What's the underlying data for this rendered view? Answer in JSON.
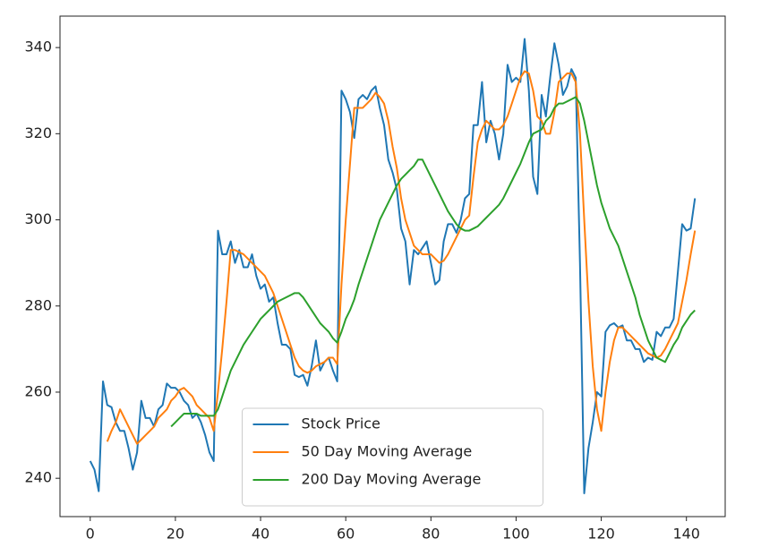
{
  "chart_data": {
    "type": "line",
    "x": [
      0,
      1,
      2,
      3,
      4,
      5,
      6,
      7,
      8,
      9,
      10,
      11,
      12,
      13,
      14,
      15,
      16,
      17,
      18,
      19,
      20,
      21,
      22,
      23,
      24,
      25,
      26,
      27,
      28,
      29,
      30,
      31,
      32,
      33,
      34,
      35,
      36,
      37,
      38,
      39,
      40,
      41,
      42,
      43,
      44,
      45,
      46,
      47,
      48,
      49,
      50,
      51,
      52,
      53,
      54,
      55,
      56,
      57,
      58,
      59,
      60,
      61,
      62,
      63,
      64,
      65,
      66,
      67,
      68,
      69,
      70,
      71,
      72,
      73,
      74,
      75,
      76,
      77,
      78,
      79,
      80,
      81,
      82,
      83,
      84,
      85,
      86,
      87,
      88,
      89,
      90,
      91,
      92,
      93,
      94,
      95,
      96,
      97,
      98,
      99,
      100,
      101,
      102,
      103,
      104,
      105,
      106,
      107,
      108,
      109,
      110,
      111,
      112,
      113,
      114,
      115,
      116,
      117,
      118,
      119,
      120,
      121,
      122,
      123,
      124,
      125,
      126,
      127,
      128,
      129,
      130,
      131,
      132,
      133,
      134,
      135,
      136,
      137,
      138,
      139,
      140,
      141,
      142
    ],
    "series": [
      {
        "name": "Stock Price",
        "color": "#1f77b4",
        "values": [
          244,
          242,
          237,
          262.5,
          257,
          256.5,
          253,
          251,
          251,
          247,
          242,
          246,
          258,
          254,
          254,
          252,
          256,
          257,
          262,
          261,
          261,
          260,
          258,
          257,
          254,
          255,
          253,
          250,
          246,
          244,
          297.5,
          292,
          292,
          295,
          290,
          293,
          289,
          289,
          292,
          287,
          284,
          285,
          281,
          282,
          276,
          271,
          271,
          270,
          264,
          263.5,
          264,
          261.5,
          266,
          272,
          265,
          267,
          268,
          265,
          262.5,
          330,
          328,
          325,
          319,
          328,
          329,
          328,
          330,
          331,
          326,
          322,
          314,
          311,
          307,
          298,
          295,
          285,
          293,
          292,
          293.5,
          295,
          290,
          285,
          286,
          295,
          299,
          299,
          297,
          300,
          305,
          306,
          322,
          322,
          332,
          318,
          323,
          320,
          314,
          320,
          336,
          332,
          333,
          332,
          342,
          330,
          310,
          306,
          329,
          324,
          333,
          341,
          336,
          329,
          331,
          335,
          333,
          290,
          236.5,
          247,
          253,
          260,
          259,
          274,
          275.5,
          276,
          275,
          275.5,
          272,
          272,
          270,
          270,
          267,
          268,
          267.5,
          274,
          273,
          275,
          275,
          277,
          288,
          299,
          297.5,
          298,
          305
        ]
      },
      {
        "name": "50 Day Moving Average",
        "color": "#ff7f0e",
        "values": [
          null,
          null,
          null,
          null,
          248.5,
          251,
          253,
          256,
          254,
          252,
          250,
          248,
          249,
          250,
          251,
          252,
          254,
          255,
          256,
          258,
          259,
          260.5,
          261,
          260,
          259,
          257,
          256,
          255,
          254,
          251,
          260,
          270,
          281,
          293,
          293,
          292.5,
          292,
          291,
          290,
          289,
          288,
          287,
          285,
          283,
          280,
          277,
          274,
          271,
          268,
          266,
          265,
          264.5,
          265,
          266,
          266.5,
          267,
          268,
          268,
          266.5,
          285,
          300,
          313,
          326,
          326,
          326,
          327,
          328,
          329.5,
          328.5,
          327,
          323,
          317,
          312,
          305,
          300,
          297,
          294,
          293,
          292,
          292,
          292,
          291,
          290,
          290.5,
          292,
          294,
          296,
          298,
          300,
          301,
          310,
          318,
          321,
          323,
          322,
          321,
          321,
          322,
          324,
          327,
          330,
          333,
          334.5,
          334,
          330,
          324,
          323,
          320,
          320,
          325,
          332,
          333,
          334,
          334,
          332,
          320,
          300,
          281,
          266,
          256,
          251,
          260,
          267,
          272,
          275,
          275,
          274,
          273,
          272,
          271,
          270,
          269,
          268.5,
          268,
          268.5,
          270,
          272,
          274,
          276,
          281,
          286,
          292,
          297.5
        ]
      },
      {
        "name": "200 Day Moving Average",
        "color": "#2ca02c",
        "values": [
          null,
          null,
          null,
          null,
          null,
          null,
          null,
          null,
          null,
          null,
          null,
          null,
          null,
          null,
          null,
          null,
          null,
          null,
          null,
          252,
          253,
          254,
          255,
          255,
          255,
          255,
          254.5,
          254.5,
          254.5,
          254.5,
          256,
          259,
          262,
          265,
          267,
          269,
          271,
          272.5,
          274,
          275.5,
          277,
          278,
          279,
          280,
          281,
          281.5,
          282,
          282.5,
          283,
          283,
          282,
          280.5,
          279,
          277.5,
          276,
          275,
          274,
          272.5,
          271.5,
          274,
          277,
          279,
          281.5,
          285,
          288,
          291,
          294,
          297,
          300,
          302,
          304,
          306,
          308,
          309.5,
          310.5,
          311.5,
          312.5,
          314,
          314,
          312,
          310,
          308,
          306,
          304,
          302,
          300.5,
          299,
          298,
          297.5,
          297.5,
          298,
          298.5,
          299.5,
          300.5,
          301.5,
          302.5,
          303.5,
          305,
          307,
          309,
          311,
          313,
          315.5,
          318,
          320,
          320.5,
          321,
          323,
          324,
          326,
          327,
          327,
          327.5,
          328,
          328.5,
          327,
          323,
          318,
          313,
          308,
          304,
          301,
          298,
          296,
          294,
          291,
          288,
          285,
          282,
          278,
          275,
          272,
          270,
          268,
          267.5,
          267,
          269,
          271,
          272.5,
          275,
          276.5,
          278,
          279
        ]
      }
    ],
    "xlim": [
      -7.1,
      149.1
    ],
    "ylim": [
      231.1,
      347.3
    ],
    "xticks": [
      0,
      20,
      40,
      60,
      80,
      100,
      120,
      140
    ],
    "yticks": [
      240,
      260,
      280,
      300,
      320,
      340
    ],
    "legend": "lower center"
  }
}
